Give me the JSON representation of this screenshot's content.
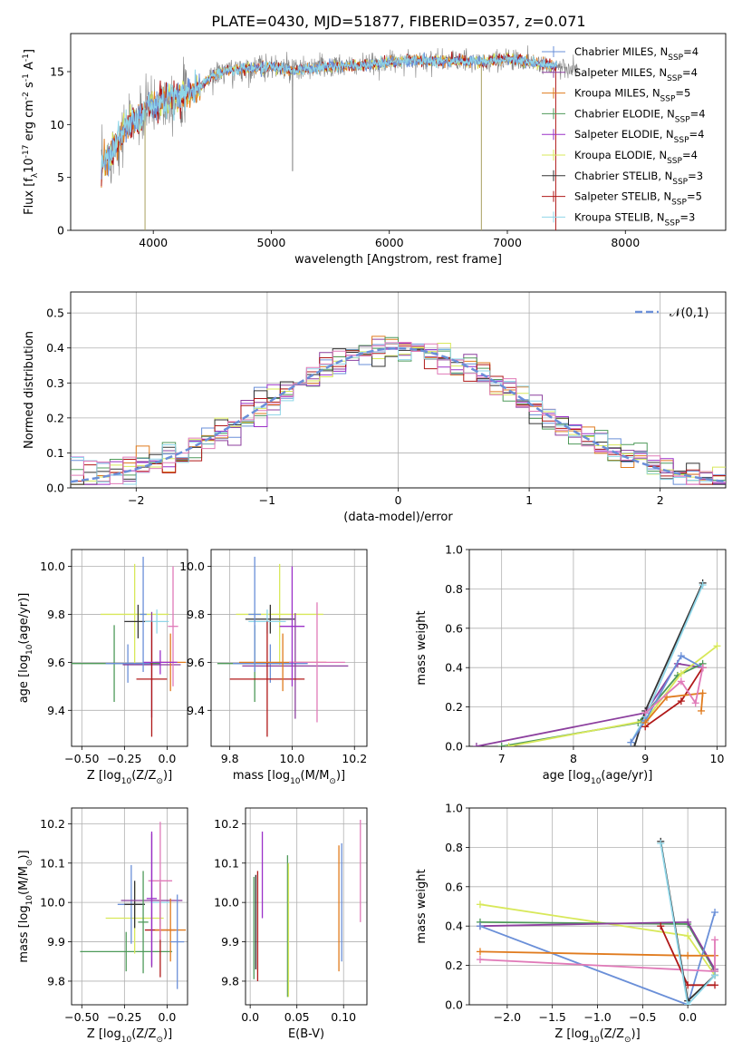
{
  "figure": {
    "title": "PLATE=0430, MJD=51877, FIBERID=0357, z=0.071"
  },
  "palette": {
    "Chabrier MILES": "#6a8fd8",
    "Salpeter MILES": "#8c3f9e",
    "Kroupa MILES": "#e07b1e",
    "Chabrier ELODIE": "#4f9a5a",
    "Salpeter ELODIE": "#9b30c8",
    "Kroupa ELODIE": "#d8e85a",
    "Chabrier STELIB": "#333333",
    "Salpeter STELIB": "#b01818",
    "Kroupa STELIB": "#8fd6e8",
    "extra_pink": "#e07ab8",
    "data_gray": "#808080",
    "gaussian": "#6a8fd8"
  },
  "chart_data": [
    {
      "id": "spectrum",
      "type": "line",
      "xlabel": "wavelength [Angstrom, rest frame]",
      "ylabel": "Flux [f$_\\lambda$10$^{-17}$ erg cm$^{-2}$ s$^{-1}$ A$^{-1}$]",
      "xlim": [
        3300,
        8850
      ],
      "ylim": [
        0,
        18.6
      ],
      "xticks": [
        4000,
        5000,
        6000,
        7000,
        8000
      ],
      "yticks": [
        0,
        5,
        10,
        15
      ],
      "legend_position": "right",
      "legend": [
        {
          "label": "Chabrier MILES, N$_{SSP}$=4",
          "color": "#6a8fd8"
        },
        {
          "label": "Salpeter MILES, N$_{SSP}$=4",
          "color": "#8c3f9e"
        },
        {
          "label": "Kroupa MILES, N$_{SSP}$=5",
          "color": "#e07b1e"
        },
        {
          "label": "Chabrier ELODIE, N$_{SSP}$=4",
          "color": "#4f9a5a"
        },
        {
          "label": "Salpeter ELODIE, N$_{SSP}$=4",
          "color": "#9b30c8"
        },
        {
          "label": "Kroupa ELODIE, N$_{SSP}$=4",
          "color": "#d8e85a"
        },
        {
          "label": "Chabrier STELIB, N$_{SSP}$=3",
          "color": "#333333"
        },
        {
          "label": "Salpeter STELIB, N$_{SSP}$=5",
          "color": "#b01818"
        },
        {
          "label": "Kroupa STELIB, N$_{SSP}$=3",
          "color": "#8fd6e8"
        }
      ],
      "continuum": [
        [
          3560,
          6.2
        ],
        [
          3620,
          6.8
        ],
        [
          3700,
          8.5
        ],
        [
          3800,
          10.2
        ],
        [
          3900,
          10.6
        ],
        [
          3950,
          11.8
        ],
        [
          4000,
          11.6
        ],
        [
          4100,
          12.4
        ],
        [
          4200,
          12.6
        ],
        [
          4300,
          12.9
        ],
        [
          4400,
          13.6
        ],
        [
          4500,
          14.6
        ],
        [
          4600,
          15.0
        ],
        [
          4800,
          15.3
        ],
        [
          5000,
          15.5
        ],
        [
          5200,
          15.1
        ],
        [
          5400,
          15.4
        ],
        [
          5600,
          15.5
        ],
        [
          5800,
          15.6
        ],
        [
          6000,
          15.9
        ],
        [
          6200,
          16.1
        ],
        [
          6400,
          16.0
        ],
        [
          6600,
          16.0
        ],
        [
          6800,
          15.9
        ],
        [
          7000,
          16.2
        ],
        [
          7200,
          15.9
        ],
        [
          7400,
          15.5
        ],
        [
          7500,
          15.2
        ]
      ],
      "data_extent": [
        3560,
        7600
      ],
      "model_extent": [
        3560,
        7420
      ],
      "notes_visible_dips": [
        [
          3930,
          0.0
        ],
        [
          6780,
          0.0
        ],
        [
          7410,
          0.0
        ],
        [
          5180,
          5.6
        ]
      ]
    },
    {
      "id": "residual_hist",
      "type": "bar",
      "xlabel": "(data-model)/error",
      "ylabel": "Normed distribution",
      "xlim": [
        -2.5,
        2.5
      ],
      "ylim": [
        0,
        0.56
      ],
      "xticks": [
        -2,
        -1,
        0,
        1,
        2
      ],
      "yticks": [
        0.0,
        0.1,
        0.2,
        0.3,
        0.4,
        0.5
      ],
      "legend": [
        {
          "label": "$\\mathcal{N}(0,1)$",
          "color": "#6a8fd8",
          "style": "dashed"
        }
      ],
      "bin_width": 0.1,
      "x_start": -2.5
    },
    {
      "id": "age_vs_Z",
      "type": "scatter",
      "xlabel": "Z [log$_{10}$($Z/Z_\\odot$)]",
      "ylabel": "age  [log$_{10}$($age/yr$)]",
      "xlim": [
        -0.56,
        0.12
      ],
      "ylim": [
        9.25,
        10.07
      ],
      "xticks": [
        -0.5,
        -0.25,
        0.0
      ],
      "yticks": [
        9.4,
        9.6,
        9.8,
        10.0
      ],
      "points": [
        {
          "x": -0.31,
          "y": 9.595,
          "xerr": 0.27,
          "yerr": 0.16,
          "color": "#4f9a5a"
        },
        {
          "x": -0.19,
          "y": 9.8,
          "xerr": 0.2,
          "yerr": 0.21,
          "color": "#d8e85a"
        },
        {
          "x": -0.23,
          "y": 9.595,
          "xerr": 0.13,
          "yerr": 0.08,
          "color": "#6a8fd8"
        },
        {
          "x": -0.17,
          "y": 9.77,
          "xerr": 0.08,
          "yerr": 0.07,
          "color": "#333333"
        },
        {
          "x": -0.09,
          "y": 9.59,
          "xerr": 0.17,
          "yerr": 0.22,
          "color": "#8c3f9e"
        },
        {
          "x": -0.06,
          "y": 9.77,
          "xerr": 0.07,
          "yerr": 0.05,
          "color": "#8fd6e8"
        },
        {
          "x": -0.09,
          "y": 9.53,
          "xerr": 0.09,
          "yerr": 0.24,
          "color": "#b01818"
        },
        {
          "x": 0.02,
          "y": 9.6,
          "xerr": 0.09,
          "yerr": 0.12,
          "color": "#e07b1e"
        },
        {
          "x": 0.035,
          "y": 9.75,
          "xerr": 0.03,
          "yerr": 0.25,
          "color": "#e07ab8"
        },
        {
          "x": -0.04,
          "y": 9.6,
          "xerr": 0.1,
          "yerr": 0.05,
          "color": "#9b30c8"
        },
        {
          "x": -0.14,
          "y": 9.8,
          "xerr": 0.02,
          "yerr": 0.24,
          "color": "#6a8fd8"
        }
      ]
    },
    {
      "id": "age_vs_mass",
      "type": "scatter",
      "xlabel": "mass [log$_{10}$($M/M_\\odot$)]",
      "ylabel": "",
      "xlim": [
        9.74,
        10.24
      ],
      "ylim": [
        9.25,
        10.07
      ],
      "xticks": [
        9.8,
        10.0,
        10.2
      ],
      "yticks": [
        9.4,
        9.6,
        9.8,
        10.0
      ],
      "points": [
        {
          "x": 9.88,
          "y": 9.595,
          "xerr": 0.12,
          "yerr": 0.16,
          "color": "#4f9a5a"
        },
        {
          "x": 9.96,
          "y": 9.8,
          "xerr": 0.14,
          "yerr": 0.21,
          "color": "#d8e85a"
        },
        {
          "x": 9.93,
          "y": 9.595,
          "xerr": 0.12,
          "yerr": 0.08,
          "color": "#6a8fd8"
        },
        {
          "x": 9.93,
          "y": 9.78,
          "xerr": 0.08,
          "yerr": 0.06,
          "color": "#333333"
        },
        {
          "x": 10.01,
          "y": 9.585,
          "xerr": 0.17,
          "yerr": 0.22,
          "color": "#8c3f9e"
        },
        {
          "x": 9.92,
          "y": 9.77,
          "xerr": 0.06,
          "yerr": 0.05,
          "color": "#8fd6e8"
        },
        {
          "x": 9.92,
          "y": 9.53,
          "xerr": 0.12,
          "yerr": 0.24,
          "color": "#b01818"
        },
        {
          "x": 9.97,
          "y": 9.6,
          "xerr": 0.14,
          "yerr": 0.12,
          "color": "#e07b1e"
        },
        {
          "x": 10.08,
          "y": 9.6,
          "xerr": 0.09,
          "yerr": 0.25,
          "color": "#e07ab8"
        },
        {
          "x": 10.0,
          "y": 9.75,
          "xerr": 0.04,
          "yerr": 0.25,
          "color": "#9b30c8"
        },
        {
          "x": 9.88,
          "y": 9.8,
          "xerr": 0.02,
          "yerr": 0.24,
          "color": "#6a8fd8"
        }
      ]
    },
    {
      "id": "weight_vs_age",
      "type": "line",
      "xlabel": "age  [log$_{10}$($age/yr$)]",
      "ylabel": "mass weight",
      "xlim": [
        6.55,
        10.12
      ],
      "ylim": [
        0.0,
        1.0
      ],
      "xticks": [
        7,
        8,
        9,
        10
      ],
      "yticks": [
        0.0,
        0.2,
        0.4,
        0.6,
        0.8,
        1.0
      ],
      "series": [
        {
          "color": "#8c3f9e",
          "points": [
            [
              6.65,
              0.0
            ],
            [
              9.0,
              0.17
            ],
            [
              9.45,
              0.42
            ],
            [
              9.8,
              0.4
            ]
          ]
        },
        {
          "color": "#4f9a5a",
          "points": [
            [
              7.0,
              0.0
            ],
            [
              8.9,
              0.12
            ],
            [
              9.45,
              0.36
            ],
            [
              9.8,
              0.42
            ]
          ]
        },
        {
          "color": "#d8e85a",
          "points": [
            [
              7.1,
              0.0
            ],
            [
              9.0,
              0.13
            ],
            [
              9.5,
              0.37
            ],
            [
              10.0,
              0.51
            ]
          ]
        },
        {
          "color": "#333333",
          "points": [
            [
              8.85,
              0.0
            ],
            [
              9.0,
              0.18
            ],
            [
              9.8,
              0.83
            ]
          ]
        },
        {
          "color": "#8fd6e8",
          "points": [
            [
              8.8,
              0.02
            ],
            [
              9.0,
              0.15
            ],
            [
              9.8,
              0.82
            ]
          ]
        },
        {
          "color": "#6a8fd8",
          "points": [
            [
              8.8,
              0.02
            ],
            [
              9.0,
              0.13
            ],
            [
              9.5,
              0.46
            ],
            [
              9.8,
              0.4
            ]
          ]
        },
        {
          "color": "#b01818",
          "points": [
            [
              9.0,
              0.1
            ],
            [
              9.5,
              0.23
            ],
            [
              9.8,
              0.4
            ]
          ]
        },
        {
          "color": "#e07b1e",
          "points": [
            [
              9.0,
              0.12
            ],
            [
              9.3,
              0.25
            ],
            [
              9.8,
              0.27
            ],
            [
              9.78,
              0.18
            ]
          ]
        },
        {
          "color": "#e07ab8",
          "points": [
            [
              9.0,
              0.17
            ],
            [
              9.5,
              0.33
            ],
            [
              9.7,
              0.22
            ],
            [
              9.8,
              0.4
            ]
          ]
        }
      ]
    },
    {
      "id": "mass_vs_Z",
      "type": "scatter",
      "xlabel": "Z [log$_{10}$($Z/Z_\\odot$)]",
      "ylabel": "mass [log$_{10}$($M/M_\\odot$)]",
      "xlim": [
        -0.56,
        0.12
      ],
      "ylim": [
        9.74,
        10.24
      ],
      "xticks": [
        -0.5,
        -0.25,
        0.0
      ],
      "yticks": [
        9.8,
        9.9,
        10.0,
        10.1,
        10.2
      ],
      "points": [
        {
          "x": -0.24,
          "y": 9.875,
          "xerr": 0.27,
          "yerr": 0.05,
          "color": "#4f9a5a"
        },
        {
          "x": -0.19,
          "y": 9.96,
          "xerr": 0.17,
          "yerr": 0.09,
          "color": "#d8e85a"
        },
        {
          "x": -0.21,
          "y": 9.995,
          "xerr": 0.08,
          "yerr": 0.1,
          "color": "#6a8fd8"
        },
        {
          "x": -0.19,
          "y": 9.995,
          "xerr": 0.06,
          "yerr": 0.06,
          "color": "#333333"
        },
        {
          "x": -0.09,
          "y": 10.005,
          "xerr": 0.18,
          "yerr": 0.17,
          "color": "#8c3f9e"
        },
        {
          "x": -0.04,
          "y": 10.0,
          "xerr": 0.06,
          "yerr": 0.06,
          "color": "#8fd6e8"
        },
        {
          "x": -0.04,
          "y": 9.93,
          "xerr": 0.09,
          "yerr": 0.12,
          "color": "#b01818"
        },
        {
          "x": 0.02,
          "y": 9.93,
          "xerr": 0.09,
          "yerr": 0.08,
          "color": "#e07b1e"
        },
        {
          "x": -0.04,
          "y": 10.055,
          "xerr": 0.07,
          "yerr": 0.15,
          "color": "#e07ab8"
        },
        {
          "x": -0.09,
          "y": 10.01,
          "xerr": 0.03,
          "yerr": 0.17,
          "color": "#9b30c8"
        },
        {
          "x": -0.14,
          "y": 9.95,
          "xerr": 0.03,
          "yerr": 0.13,
          "color": "#4f9a5a"
        },
        {
          "x": 0.06,
          "y": 9.9,
          "xerr": 0.04,
          "yerr": 0.12,
          "color": "#6a8fd8"
        }
      ]
    },
    {
      "id": "mass_vs_ebv",
      "type": "scatter",
      "xlabel": "E(B-V)",
      "ylabel": "",
      "xlim": [
        -0.005,
        0.125
      ],
      "ylim": [
        9.74,
        10.24
      ],
      "xticks": [
        0.0,
        0.05,
        0.1
      ],
      "yticks": [
        9.8,
        9.9,
        10.0,
        10.1,
        10.2
      ],
      "points": [
        {
          "x": 0.004,
          "y": 9.935,
          "yerr": 0.13,
          "color": "#4f9a5a"
        },
        {
          "x": 0.006,
          "y": 9.95,
          "yerr": 0.12,
          "color": "#333333"
        },
        {
          "x": 0.008,
          "y": 9.94,
          "yerr": 0.14,
          "color": "#b01818"
        },
        {
          "x": 0.013,
          "y": 10.07,
          "yerr": 0.11,
          "color": "#9b30c8"
        },
        {
          "x": 0.04,
          "y": 9.94,
          "yerr": 0.18,
          "color": "#4f9a5a"
        },
        {
          "x": 0.041,
          "y": 9.93,
          "yerr": 0.17,
          "color": "#d8e85a"
        },
        {
          "x": 0.095,
          "y": 9.985,
          "yerr": 0.16,
          "color": "#e07b1e"
        },
        {
          "x": 0.098,
          "y": 10.0,
          "yerr": 0.15,
          "color": "#6a8fd8"
        },
        {
          "x": 0.118,
          "y": 10.08,
          "yerr": 0.13,
          "color": "#e07ab8"
        }
      ]
    },
    {
      "id": "weight_vs_Z",
      "type": "line",
      "xlabel": "Z [log$_{10}$($Z/Z_\\odot$)]",
      "ylabel": "mass weight",
      "xlim": [
        -2.42,
        0.42
      ],
      "ylim": [
        0.0,
        1.0
      ],
      "xticks": [
        -2.0,
        -1.5,
        -1.0,
        -0.5,
        0.0
      ],
      "yticks": [
        0.0,
        0.2,
        0.4,
        0.6,
        0.8,
        1.0
      ],
      "series": [
        {
          "color": "#d8e85a",
          "points": [
            [
              -2.3,
              0.51
            ],
            [
              0.0,
              0.35
            ],
            [
              0.3,
              0.15
            ]
          ]
        },
        {
          "color": "#4f9a5a",
          "points": [
            [
              -2.3,
              0.42
            ],
            [
              0.0,
              0.41
            ],
            [
              0.3,
              0.17
            ]
          ]
        },
        {
          "color": "#8c3f9e",
          "points": [
            [
              -2.3,
              0.4
            ],
            [
              0.0,
              0.42
            ],
            [
              0.3,
              0.18
            ]
          ]
        },
        {
          "color": "#6a8fd8",
          "points": [
            [
              -2.3,
              0.4
            ],
            [
              0.0,
              0.0
            ],
            [
              0.3,
              0.47
            ]
          ]
        },
        {
          "color": "#e07b1e",
          "points": [
            [
              -2.3,
              0.27
            ],
            [
              0.0,
              0.25
            ],
            [
              0.3,
              0.25
            ]
          ]
        },
        {
          "color": "#e07ab8",
          "points": [
            [
              -2.3,
              0.23
            ],
            [
              0.3,
              0.17
            ],
            [
              0.3,
              0.33
            ]
          ]
        },
        {
          "color": "#b01818",
          "points": [
            [
              -0.3,
              0.4
            ],
            [
              0.0,
              0.1
            ],
            [
              0.3,
              0.1
            ]
          ]
        },
        {
          "color": "#333333",
          "points": [
            [
              -0.3,
              0.83
            ],
            [
              0.0,
              0.02
            ],
            [
              0.3,
              0.15
            ]
          ]
        },
        {
          "color": "#8fd6e8",
          "points": [
            [
              -0.3,
              0.82
            ],
            [
              0.0,
              0.0
            ],
            [
              0.3,
              0.15
            ]
          ]
        }
      ]
    }
  ]
}
